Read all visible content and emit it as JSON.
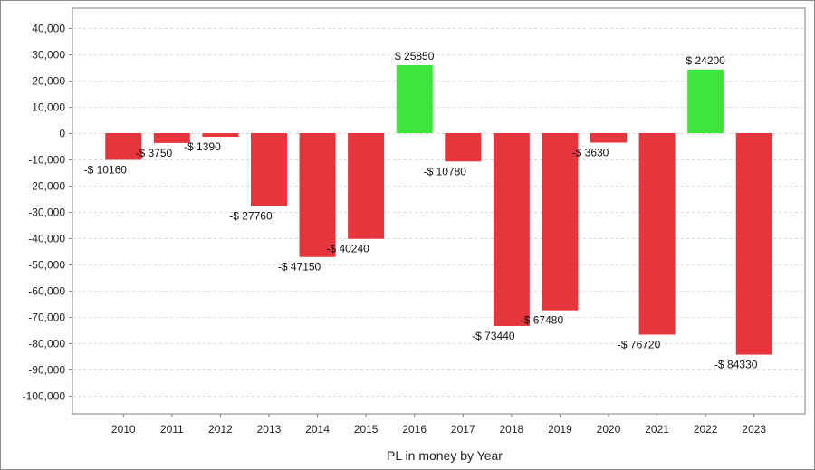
{
  "chart_data": {
    "type": "bar",
    "title": "",
    "xlabel": "PL in money by Year",
    "ylabel": "",
    "categories": [
      "2010",
      "2011",
      "2012",
      "2013",
      "2014",
      "2015",
      "2016",
      "2017",
      "2018",
      "2019",
      "2020",
      "2021",
      "2022",
      "2023"
    ],
    "values": [
      -10160,
      -3750,
      -1390,
      -27760,
      -47150,
      -40240,
      25850,
      -10780,
      -73440,
      -67480,
      -3630,
      -76720,
      24200,
      -84330
    ],
    "data_labels": [
      "-$ 10160",
      "-$ 3750",
      "-$ 1390",
      "-$ 27760",
      "-$ 47150",
      "-$ 40240",
      "$ 25850",
      "-$ 10780",
      "-$ 73440",
      "-$ 67480",
      "-$ 3630",
      "-$ 76720",
      "$ 24200",
      "-$ 84330"
    ],
    "ylim": [
      -107000,
      43000
    ],
    "y_ticks": [
      40000,
      30000,
      20000,
      10000,
      0,
      -10000,
      -20000,
      -30000,
      -40000,
      -50000,
      -60000,
      -70000,
      -80000,
      -90000,
      -100000
    ],
    "y_tick_labels": [
      "40,000",
      "30,000",
      "20,000",
      "10,000",
      "0",
      "-10,000",
      "-20,000",
      "-30,000",
      "-40,000",
      "-50,000",
      "-60,000",
      "-70,000",
      "-80,000",
      "-90,000",
      "-100,000"
    ],
    "grid": true,
    "legend": "none",
    "colors": {
      "positive": "#3de43a",
      "negative": "#e5363d",
      "grid": "#d9d9d9",
      "axis": "#808080"
    }
  }
}
